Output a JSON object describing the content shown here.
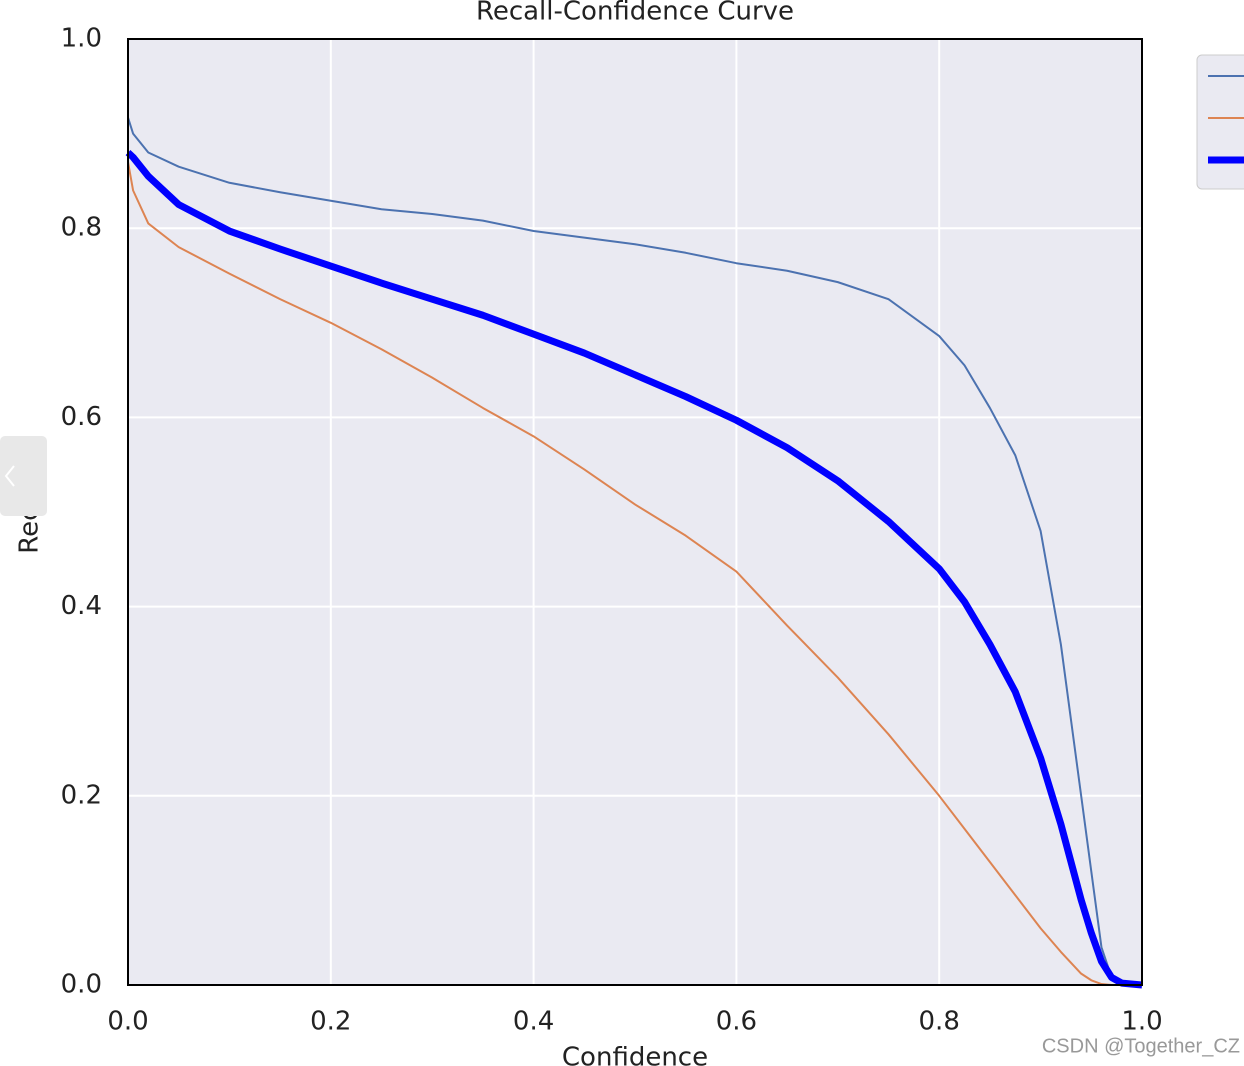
{
  "chart_data": {
    "type": "line",
    "title": "Recall-Confidence Curve",
    "xlabel": "Confidence",
    "ylabel": "Recall",
    "x": [
      0,
      0.005,
      0.02,
      0.05,
      0.1,
      0.15,
      0.2,
      0.25,
      0.3,
      0.35,
      0.4,
      0.45,
      0.5,
      0.55,
      0.6,
      0.65,
      0.7,
      0.75,
      0.8,
      0.825,
      0.85,
      0.875,
      0.9,
      0.92,
      0.94,
      0.95,
      0.96,
      0.97,
      0.98,
      1.0
    ],
    "series": [
      {
        "color": "#4c72b0",
        "values": [
          0.917,
          0.9,
          0.88,
          0.865,
          0.848,
          0.838,
          0.829,
          0.82,
          0.815,
          0.808,
          0.797,
          0.79,
          0.783,
          0.774,
          0.763,
          0.755,
          0.743,
          0.725,
          0.686,
          0.655,
          0.61,
          0.56,
          0.48,
          0.36,
          0.2,
          0.12,
          0.04,
          0.008,
          0.002,
          0
        ]
      },
      {
        "color": "#dd8452",
        "values": [
          0.87,
          0.84,
          0.805,
          0.78,
          0.752,
          0.725,
          0.7,
          0.672,
          0.642,
          0.61,
          0.58,
          0.545,
          0.508,
          0.475,
          0.437,
          0.38,
          0.325,
          0.265,
          0.2,
          0.165,
          0.13,
          0.095,
          0.06,
          0.035,
          0.012,
          0.005,
          0.001,
          0,
          0,
          0
        ]
      },
      {
        "color": "#0000ff",
        "values": [
          0.88,
          0.875,
          0.855,
          0.825,
          0.797,
          0.778,
          0.76,
          0.742,
          0.725,
          0.708,
          0.688,
          0.668,
          0.645,
          0.622,
          0.597,
          0.568,
          0.533,
          0.49,
          0.44,
          0.405,
          0.36,
          0.31,
          0.24,
          0.17,
          0.09,
          0.055,
          0.025,
          0.008,
          0.002,
          0
        ]
      }
    ],
    "xlim": [
      0,
      1
    ],
    "ylim": [
      0,
      1
    ],
    "xticks": [
      {
        "value": 0,
        "label": "0.0"
      },
      0.2,
      0.4,
      0.6,
      0.8,
      {
        "value": 1,
        "label": "1.0"
      }
    ],
    "yticks": [
      {
        "value": 0,
        "label": "0.0"
      },
      0.2,
      0.4,
      0.6,
      0.8,
      {
        "value": 1,
        "label": "1.0"
      }
    ],
    "grid": true,
    "legend": "upper right outside"
  },
  "watermark": "CSDN @Together_CZ"
}
